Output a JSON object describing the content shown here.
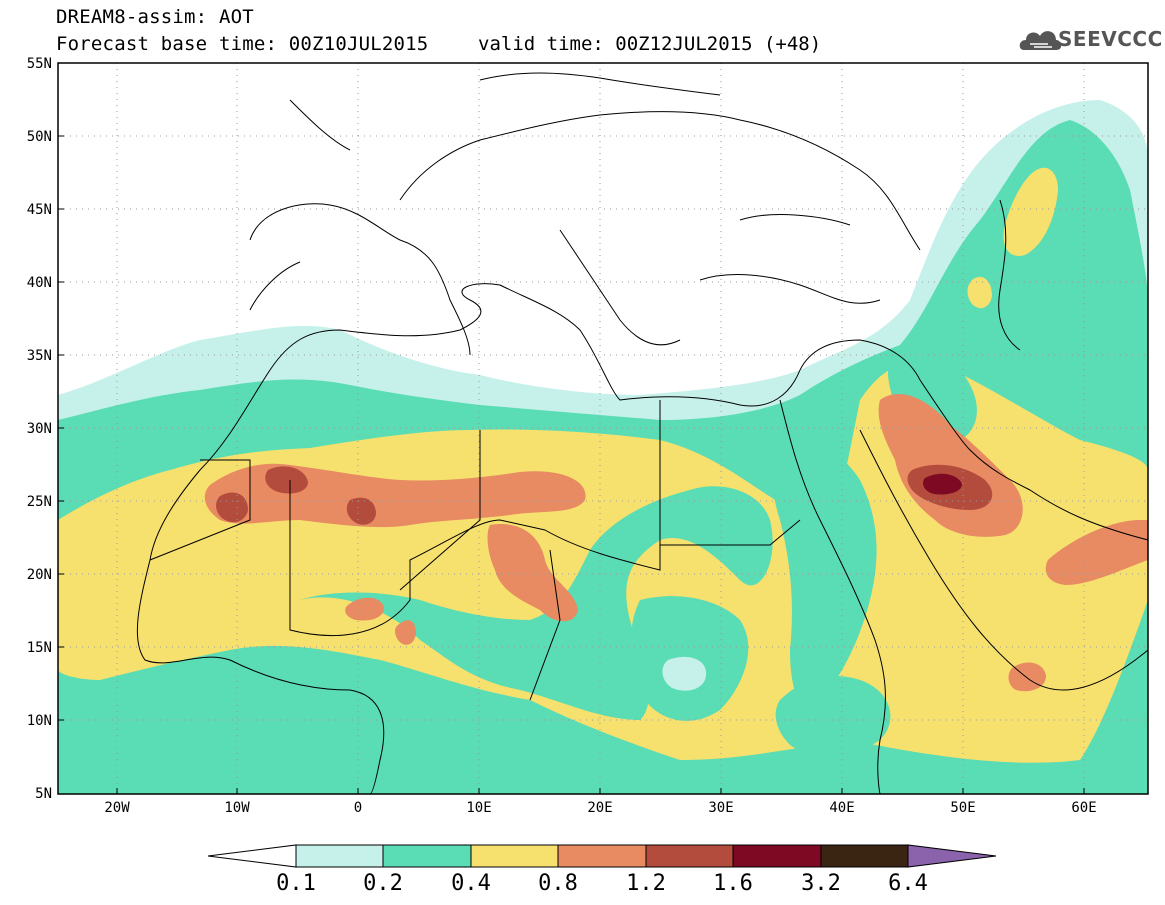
{
  "header": {
    "title": "DREAM8-assim: AOT",
    "base_time": "Forecast base time: 00Z10JUL2015",
    "valid_time": "valid time: 00Z12JUL2015 (+48)",
    "logo_text": "SEEVCCC"
  },
  "map": {
    "lat_labels": [
      "55N",
      "50N",
      "45N",
      "40N",
      "35N",
      "30N",
      "25N",
      "20N",
      "15N",
      "10N",
      "5N"
    ],
    "lon_labels": [
      "20W",
      "10W",
      "0",
      "10E",
      "20E",
      "30E",
      "40E",
      "50E",
      "60E"
    ]
  },
  "colorbar": {
    "labels": [
      "0.1",
      "0.2",
      "0.4",
      "0.8",
      "1.2",
      "1.6",
      "3.2",
      "6.4"
    ],
    "colors": [
      "#c6f1ea",
      "#5adcb4",
      "#f6e06e",
      "#e88a62",
      "#b34c3d",
      "#7d0a22",
      "#3a2412",
      "#8b63ad"
    ]
  }
}
